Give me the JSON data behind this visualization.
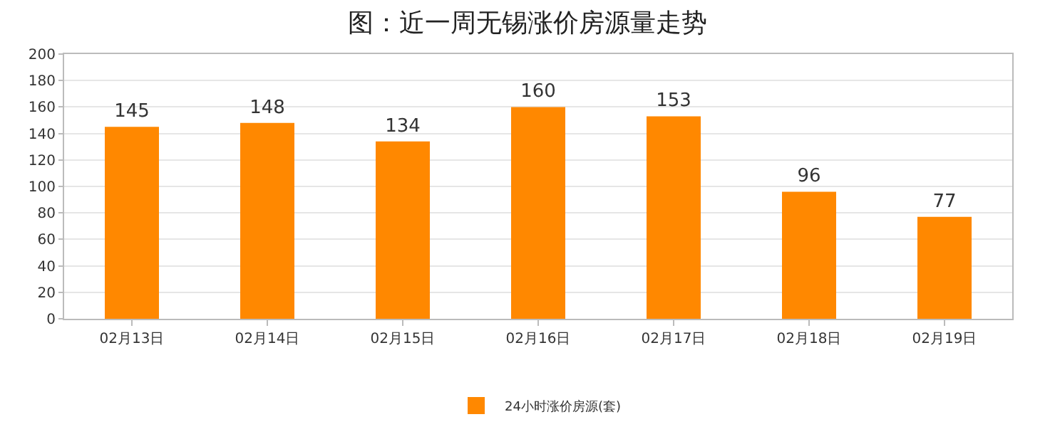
{
  "chart_data": {
    "type": "bar",
    "title": "图：近一周无锡涨价房源量走势",
    "categories": [
      "02月13日",
      "02月14日",
      "02月15日",
      "02月16日",
      "02月17日",
      "02月18日",
      "02月19日"
    ],
    "series": [
      {
        "name": "24小时涨价房源(套)",
        "color": "#ff8800",
        "values": [
          145,
          148,
          134,
          160,
          153,
          96,
          77
        ]
      }
    ],
    "ylim": [
      0,
      200
    ],
    "yticks": [
      0,
      20,
      40,
      60,
      80,
      100,
      120,
      140,
      160,
      180,
      200
    ],
    "grid": "y",
    "legend": "bottom",
    "data_labels": true
  }
}
